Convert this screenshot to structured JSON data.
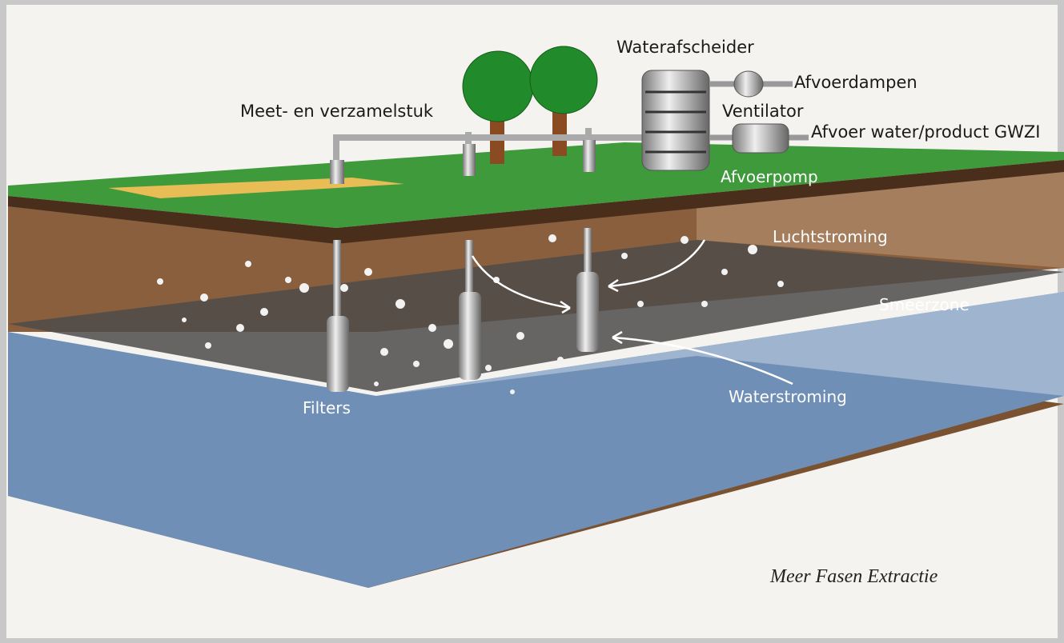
{
  "labels": {
    "separator": "Waterafscheider",
    "vapour_outlet": "Afvoerdampen",
    "fan": "Ventilator",
    "manifold": "Meet- en verzamelstuk",
    "water_outlet": "Afvoer water/product GWZI",
    "pump": "Afvoerpomp",
    "air_flow": "Luchtstroming",
    "smear_zone": "Smeerzone",
    "filters": "Filters",
    "water_flow": "Waterstroming"
  },
  "caption": "Meer Fasen Extractie"
}
